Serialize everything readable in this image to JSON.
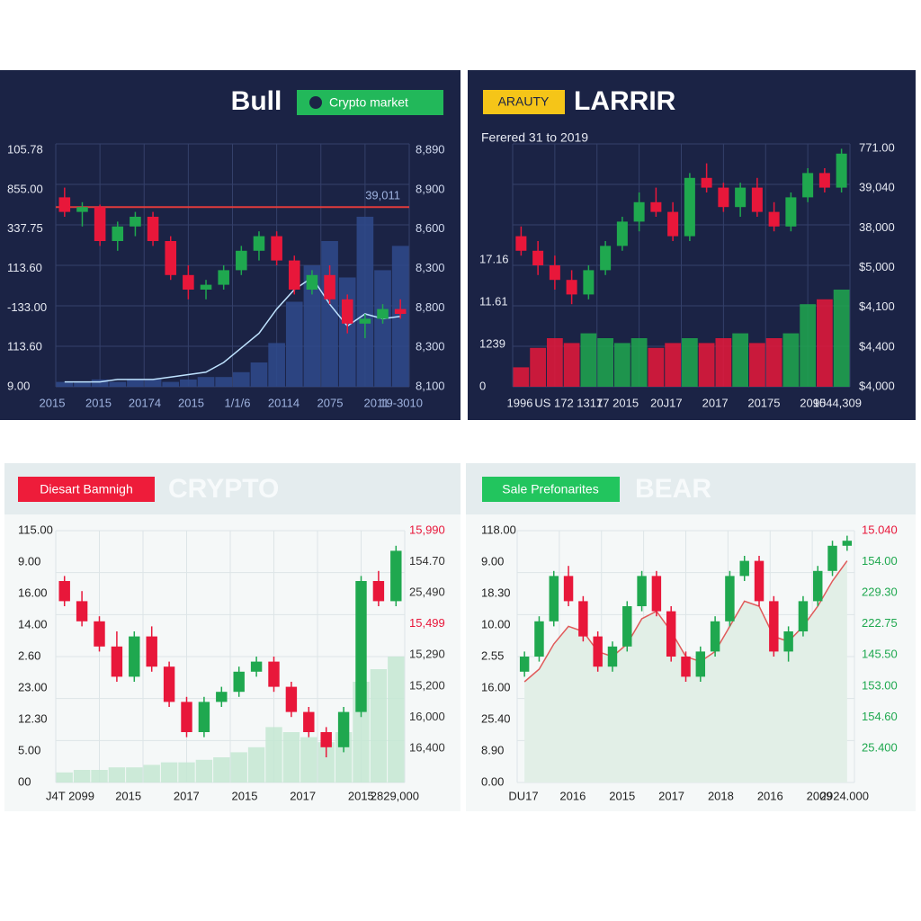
{
  "chart_data": [
    {
      "type": "candlestick",
      "title": "Bull",
      "badge": "Crypto market",
      "annotation": "39,011",
      "y_labels": [
        "105.78",
        "855.00",
        "337.75",
        "113.60",
        "-133.00",
        "113.60",
        "9.00"
      ],
      "y2_labels": [
        "8,890",
        "8,900",
        "8,600",
        "8,300",
        "8,800",
        "8,300",
        "8,100"
      ],
      "x_labels": [
        "2015",
        "2015",
        "20174",
        "2015",
        "1/1/6",
        "20114",
        "2075",
        "2011",
        "19-3010"
      ],
      "ylim": [
        0,
        100
      ],
      "up_color": "#1fa84f",
      "down_color": "#e8173a",
      "volume_color": "#2f4a8c",
      "line_color": "#bfe3ff",
      "hline_color": "#e23b3b",
      "hline": 74,
      "ohlc": [
        [
          78,
          82,
          70,
          72
        ],
        [
          72,
          76,
          66,
          74
        ],
        [
          74,
          75,
          58,
          60
        ],
        [
          60,
          68,
          56,
          66
        ],
        [
          66,
          72,
          62,
          70
        ],
        [
          70,
          72,
          58,
          60
        ],
        [
          60,
          62,
          44,
          46
        ],
        [
          46,
          50,
          36,
          40
        ],
        [
          40,
          44,
          36,
          42
        ],
        [
          42,
          50,
          40,
          48
        ],
        [
          48,
          58,
          46,
          56
        ],
        [
          56,
          64,
          52,
          62
        ],
        [
          62,
          64,
          50,
          52
        ],
        [
          52,
          54,
          38,
          40
        ],
        [
          40,
          48,
          38,
          46
        ],
        [
          46,
          50,
          34,
          36
        ],
        [
          36,
          38,
          22,
          26
        ],
        [
          26,
          30,
          20,
          28
        ],
        [
          28,
          34,
          26,
          32
        ],
        [
          32,
          36,
          28,
          30
        ]
      ],
      "volume": [
        2,
        2,
        3,
        2,
        3,
        3,
        2,
        3,
        4,
        4,
        6,
        10,
        18,
        35,
        50,
        60,
        45,
        70,
        48,
        58
      ],
      "line": [
        2,
        2,
        2,
        3,
        3,
        3,
        4,
        5,
        6,
        10,
        16,
        22,
        32,
        40,
        45,
        34,
        25,
        30,
        28,
        29
      ]
    },
    {
      "type": "candlestick",
      "title": "LARRIR",
      "badge": "ARAUTY",
      "subtitle": "Ferered 31 to 2019",
      "y_labels": [
        "17.16",
        "11.61",
        "1239",
        "0"
      ],
      "y2_labels": [
        "771.00",
        "39,040",
        "38,000",
        "$5,000",
        "$4,100",
        "$4,400",
        "$4,000"
      ],
      "x_labels": [
        "1996",
        "US 172 1317",
        "17 2015",
        "20J17",
        "2017",
        "20175",
        "2015",
        "9044,309"
      ],
      "ylim": [
        0,
        100
      ],
      "up_color": "#1fa84f",
      "down_color": "#e8173a",
      "ohlc": [
        [
          62,
          66,
          54,
          56
        ],
        [
          56,
          60,
          46,
          50
        ],
        [
          50,
          54,
          40,
          44
        ],
        [
          44,
          48,
          34,
          38
        ],
        [
          38,
          50,
          36,
          48
        ],
        [
          48,
          60,
          46,
          58
        ],
        [
          58,
          70,
          56,
          68
        ],
        [
          68,
          80,
          64,
          76
        ],
        [
          76,
          82,
          70,
          72
        ],
        [
          72,
          76,
          60,
          62
        ],
        [
          62,
          88,
          60,
          86
        ],
        [
          86,
          92,
          80,
          82
        ],
        [
          82,
          84,
          72,
          74
        ],
        [
          74,
          84,
          70,
          82
        ],
        [
          82,
          86,
          70,
          72
        ],
        [
          72,
          76,
          64,
          66
        ],
        [
          66,
          80,
          64,
          78
        ],
        [
          78,
          90,
          76,
          88
        ],
        [
          88,
          90,
          80,
          82
        ],
        [
          82,
          98,
          80,
          96
        ]
      ],
      "volume": [
        8,
        16,
        20,
        18,
        22,
        20,
        18,
        20,
        16,
        18,
        20,
        18,
        20,
        22,
        18,
        20,
        22,
        34,
        36,
        40
      ]
    },
    {
      "type": "candlestick",
      "title": "CRYPTO",
      "badge": "Diesart Bamnigh",
      "y_labels": [
        "115.00",
        "9.00",
        "16.00",
        "14.00",
        "2.60",
        "23.00",
        "12.30",
        "5.00",
        "00"
      ],
      "y2_labels": [
        "15,990",
        "154.70",
        "25,490",
        "15,499",
        "15,290",
        "15,200",
        "16,000",
        "16,400"
      ],
      "x_labels": [
        "J4T 2099",
        "2015",
        "2017",
        "2015",
        "2017",
        "2015",
        "2829,000"
      ],
      "ylim": [
        0,
        100
      ],
      "up_color": "#1fa84f",
      "down_color": "#e8173a",
      "volume_color": "#c4e8d2",
      "ohlc": [
        [
          80,
          82,
          70,
          72
        ],
        [
          72,
          76,
          62,
          64
        ],
        [
          64,
          66,
          52,
          54
        ],
        [
          54,
          60,
          40,
          42
        ],
        [
          42,
          60,
          40,
          58
        ],
        [
          58,
          62,
          44,
          46
        ],
        [
          46,
          48,
          30,
          32
        ],
        [
          32,
          34,
          18,
          20
        ],
        [
          20,
          34,
          18,
          32
        ],
        [
          32,
          38,
          30,
          36
        ],
        [
          36,
          46,
          34,
          44
        ],
        [
          44,
          50,
          42,
          48
        ],
        [
          48,
          50,
          36,
          38
        ],
        [
          38,
          40,
          26,
          28
        ],
        [
          28,
          30,
          18,
          20
        ],
        [
          20,
          22,
          10,
          14
        ],
        [
          14,
          30,
          12,
          28
        ],
        [
          28,
          82,
          26,
          80
        ],
        [
          80,
          84,
          70,
          72
        ],
        [
          72,
          94,
          70,
          92
        ]
      ],
      "volume": [
        4,
        5,
        5,
        6,
        6,
        7,
        8,
        8,
        9,
        10,
        12,
        14,
        22,
        20,
        18,
        16,
        20,
        40,
        45,
        50
      ]
    },
    {
      "type": "candlestick",
      "title": "BEAR",
      "badge": "Sale Prefonarites",
      "y_labels": [
        "118.00",
        "9.00",
        "18.30",
        "10.00",
        "2.55",
        "16.00",
        "25.40",
        "8.90",
        "0.00"
      ],
      "y2_labels": [
        "15.040",
        "154.00",
        "229.30",
        "222.75",
        "145.50",
        "153.00",
        "154.60",
        "25.400"
      ],
      "x_labels": [
        "DU17",
        "2016",
        "2015",
        "2017",
        "2018",
        "2016",
        "2009",
        "2924.000"
      ],
      "ylim": [
        0,
        100
      ],
      "up_color": "#1fa84f",
      "down_color": "#e8173a",
      "line_color": "#e05a5a",
      "area_color": "#e2efe7",
      "ohlc": [
        [
          44,
          52,
          42,
          50
        ],
        [
          50,
          66,
          48,
          64
        ],
        [
          64,
          84,
          62,
          82
        ],
        [
          82,
          86,
          70,
          72
        ],
        [
          72,
          74,
          56,
          58
        ],
        [
          58,
          60,
          44,
          46
        ],
        [
          46,
          56,
          44,
          54
        ],
        [
          54,
          72,
          52,
          70
        ],
        [
          70,
          84,
          68,
          82
        ],
        [
          82,
          84,
          66,
          68
        ],
        [
          68,
          70,
          48,
          50
        ],
        [
          50,
          52,
          40,
          42
        ],
        [
          42,
          54,
          40,
          52
        ],
        [
          52,
          66,
          50,
          64
        ],
        [
          64,
          84,
          62,
          82
        ],
        [
          82,
          90,
          80,
          88
        ],
        [
          88,
          90,
          70,
          72
        ],
        [
          72,
          74,
          50,
          52
        ],
        [
          52,
          62,
          48,
          60
        ],
        [
          60,
          74,
          58,
          72
        ],
        [
          72,
          86,
          70,
          84
        ],
        [
          84,
          96,
          82,
          94
        ],
        [
          94,
          98,
          92,
          96
        ]
      ],
      "line": [
        40,
        45,
        55,
        62,
        60,
        52,
        50,
        55,
        65,
        68,
        60,
        50,
        48,
        52,
        62,
        72,
        70,
        58,
        56,
        62,
        70,
        80,
        88
      ]
    }
  ]
}
